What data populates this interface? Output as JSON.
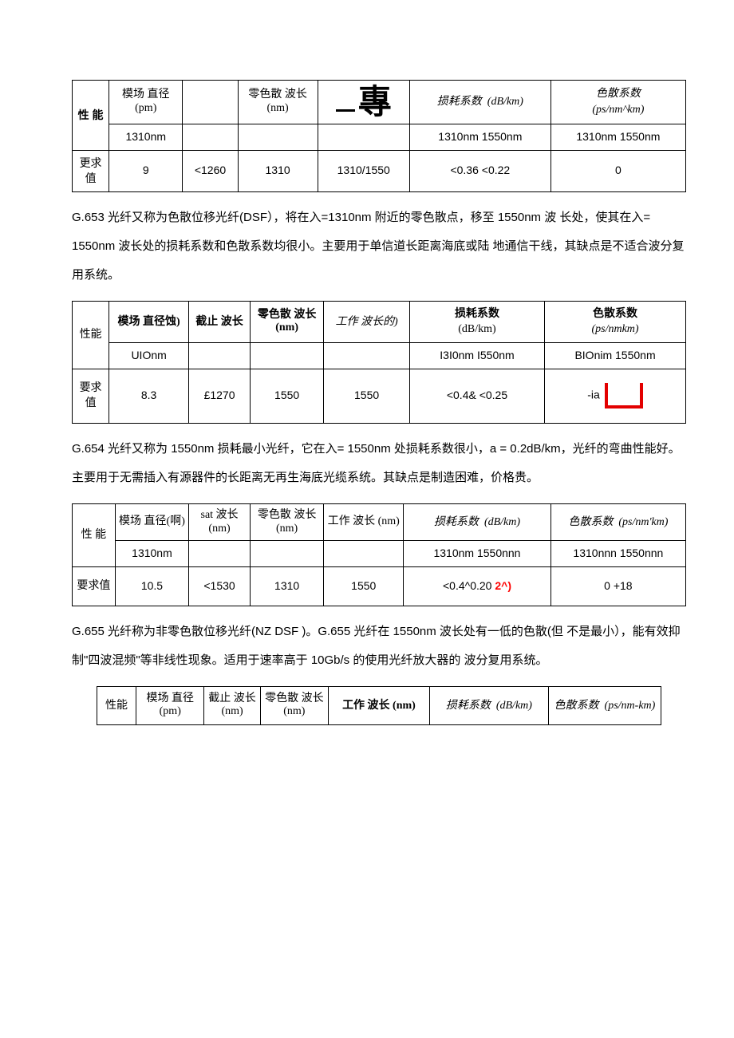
{
  "glyph": "專",
  "t1": {
    "h_perf": "性 能",
    "h_mode": "模场 直径 (pm)",
    "h_zero": "零色散 波长 (nm)",
    "h_loss": "损耗系数",
    "h_loss_unit": "(dB/km)",
    "h_disp": "色散系数",
    "h_disp_unit": "(ps/nm^km)",
    "sub_mode": "1310nm",
    "sub_loss": "1310nm   1550nm",
    "sub_disp": "1310nm 1550nm",
    "rowlabel": "更求值",
    "v_mode": "9",
    "v_cut": "<1260",
    "v_zero": "1310",
    "v_work": "1310/1550",
    "v_loss": "<0.36    <0.22",
    "v_disp": "0"
  },
  "p1": "G.653 光纤又称为色散位移光纤(DSF），将在入=1310nm 附近的零色散点，移至 1550nm 波 长处，使其在入= 1550nm 波长处的损耗系数和色散系数均很小。主要用于单信道长距离海底或陆 地通信干线，其缺点是不适合波分复用系统。",
  "t2": {
    "h_perf": "性能",
    "h_mode": "模场 直径蚀)",
    "h_cut": "截止 波长",
    "h_zero": "零色散 波长 (nm)",
    "h_work": "工作 波长的)",
    "h_loss": "损耗系数",
    "h_loss_unit": "(dB/km)",
    "h_disp": "色散系数",
    "h_disp_unit": "(ps/nmkm)",
    "sub_mode": "UIOnm",
    "sub_loss": "I3I0nm I550nm",
    "sub_disp": "BIOnim 1550nm",
    "rowlabel": "要求值",
    "v_mode": "8.3",
    "v_cut": "£1270",
    "v_zero": "1550",
    "v_work": "1550",
    "v_loss": "<0.4&    <0.25",
    "v_disp": "-ia"
  },
  "p2": "G.654 光纤又称为 1550nm 损耗最小光纤，它在入= 1550nm 处损耗系数很小，a = 0.2dB/km，光纤的弯曲性能好。主要用于无需插入有源器件的长距离无再生海底光缆系统。其缺点是制造困难，价格贵。",
  "t3": {
    "h_perf": "性 能",
    "h_mode": "模场 直径(啊)",
    "h_cut": "sat 波长 (nm)",
    "h_zero": "零色散 波长 (nm)",
    "h_work": "工作 波长 (nm)",
    "h_loss": "损耗系数",
    "h_loss_unit": "(dB/km)",
    "h_disp": "色散系数",
    "h_disp_unit": "(ps/nm'km)",
    "sub_mode": "1310nm",
    "sub_loss": "1310nm   1550nnn",
    "sub_disp": "1310nnn 1550nnn",
    "rowlabel": "要求值",
    "v_mode": "10.5",
    "v_cut": "<1530",
    "v_zero": "1310",
    "v_work": "1550",
    "v_loss_a": "<0.4^0.20 ",
    "v_loss_b": "2^)",
    "v_disp": "0 +18"
  },
  "p3": "G.655 光纤称为非零色散位移光纤(NZ DSF )。G.655 光纤在 1550nm 波长处有一低的色散(但 不是最小），能有效抑制\"四波混频\"等非线性现象。适用于速率高于 10Gb/s 的使用光纤放大器的 波分复用系统。",
  "t4": {
    "h_perf": "性能",
    "h_mode": "模场 直径 (pm)",
    "h_cut": "截止 波长 (nm)",
    "h_zero": "零色散 波长 (nm)",
    "h_work": "工作 波长 (nm)",
    "h_loss": "损耗系数",
    "h_loss_unit": "(dB/km)",
    "h_disp": "色散系数",
    "h_disp_unit": "(ps/nm-km)"
  }
}
